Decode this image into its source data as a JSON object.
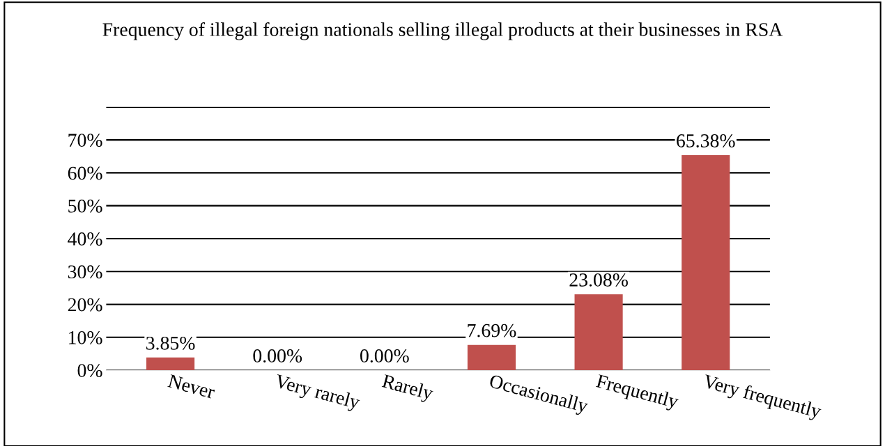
{
  "chart_data": {
    "type": "bar",
    "title": "Frequency of illegal foreign nationals selling illegal products at their businesses in RSA",
    "categories": [
      "Never",
      "Very rarely",
      "Rarely",
      "Occasionally",
      "Frequently",
      "Very frequently"
    ],
    "values": [
      3.85,
      0.0,
      0.0,
      7.69,
      23.08,
      65.38
    ],
    "value_labels": [
      "3.85%",
      "0.00%",
      "0.00%",
      "7.69%",
      "23.08%",
      "65.38%"
    ],
    "color": "#c0504d",
    "ylim": [
      0,
      80
    ],
    "yticks": [
      {
        "value": 0,
        "label": "0%"
      },
      {
        "value": 10,
        "label": "10%"
      },
      {
        "value": 20,
        "label": "20%"
      },
      {
        "value": 30,
        "label": "30%"
      },
      {
        "value": 40,
        "label": "40%"
      },
      {
        "value": 50,
        "label": "50%"
      },
      {
        "value": 60,
        "label": "60%"
      },
      {
        "value": 70,
        "label": "70%"
      },
      {
        "value": 80,
        "label": null
      }
    ],
    "grid": "y",
    "legend": false
  }
}
